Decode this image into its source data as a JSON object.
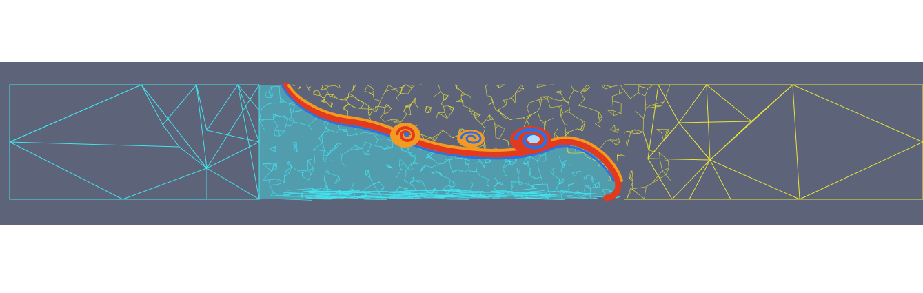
{
  "colors": {
    "page_background": "#ffffff",
    "panel_background": "#5d6378",
    "heavy_fluid_mesh": "#43e3ee",
    "light_fluid_mesh": "#e9e43a",
    "interface_red": "#e23a1e",
    "interface_orange": "#f39a22",
    "interface_blue": "#2f6fe0",
    "vortex_core_light": "#a9dcff"
  },
  "icons": [
    "mesh-wireframe",
    "spiral-vortex"
  ]
}
